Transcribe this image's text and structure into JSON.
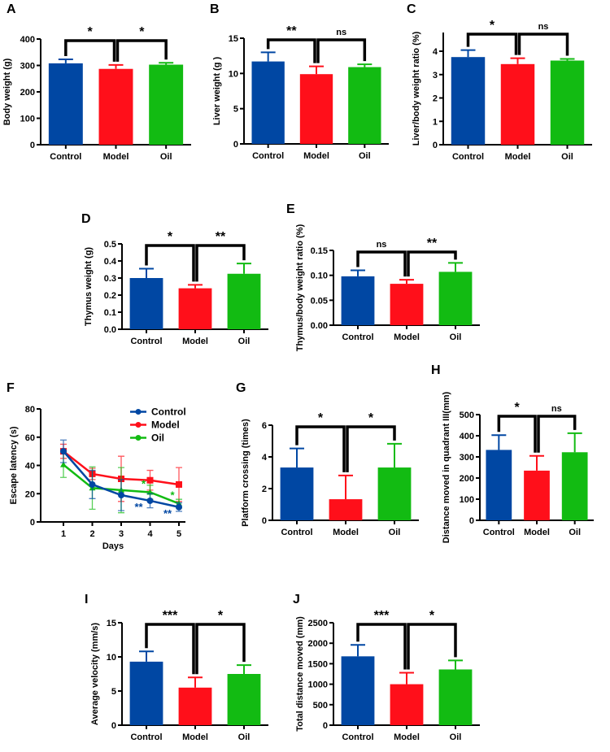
{
  "colors": {
    "Control": "#0047a3",
    "Model": "#ff0f1a",
    "Oil": "#12bb12"
  },
  "chart_data": [
    {
      "panel": "A",
      "type": "bar",
      "categories": [
        "Control",
        "Model",
        "Oil"
      ],
      "values": [
        308,
        287,
        303
      ],
      "errors": [
        15,
        15,
        7
      ],
      "ylabel": "Body weight (g)",
      "ylim": [
        0,
        400
      ],
      "yticks": [
        "0",
        "100",
        "200",
        "300",
        "400"
      ],
      "annotations": [
        {
          "pair": [
            0,
            1
          ],
          "label": "*"
        },
        {
          "pair": [
            1,
            2
          ],
          "label": "*"
        }
      ]
    },
    {
      "panel": "B",
      "type": "bar",
      "categories": [
        "Control",
        "Model",
        "Oil"
      ],
      "values": [
        11.7,
        9.9,
        10.9
      ],
      "errors": [
        1.3,
        1.1,
        0.4
      ],
      "ylabel": "Liver weight (g )",
      "ylim": [
        0,
        15
      ],
      "yticks": [
        "0",
        "5",
        "10",
        "15"
      ],
      "annotations": [
        {
          "pair": [
            0,
            1
          ],
          "label": "**"
        },
        {
          "pair": [
            1,
            2
          ],
          "label": "ns"
        }
      ]
    },
    {
      "panel": "C",
      "type": "bar",
      "categories": [
        "Control",
        "Model",
        "Oil"
      ],
      "values": [
        3.75,
        3.45,
        3.6
      ],
      "errors": [
        0.3,
        0.25,
        0.07
      ],
      "ylabel": "Liver/body weight ratio (%)",
      "ylim": [
        0,
        4.8
      ],
      "yticks": [
        "0",
        "1",
        "2",
        "3",
        "4"
      ],
      "annotations": [
        {
          "pair": [
            0,
            1
          ],
          "label": "*"
        },
        {
          "pair": [
            1,
            2
          ],
          "label": "ns"
        }
      ]
    },
    {
      "panel": "D",
      "type": "bar",
      "categories": [
        "Control",
        "Model",
        "Oil"
      ],
      "values": [
        0.3,
        0.24,
        0.325
      ],
      "errors": [
        0.055,
        0.02,
        0.06
      ],
      "ylabel": "Thymus weight (g)",
      "ylim": [
        0,
        0.5
      ],
      "yticks": [
        "0.0",
        "0.1",
        "0.2",
        "0.3",
        "0.4",
        "0.5"
      ],
      "annotations": [
        {
          "pair": [
            0,
            1
          ],
          "label": "*"
        },
        {
          "pair": [
            1,
            2
          ],
          "label": "**"
        }
      ]
    },
    {
      "panel": "E",
      "type": "bar",
      "categories": [
        "Control",
        "Model",
        "Oil"
      ],
      "values": [
        0.098,
        0.083,
        0.107
      ],
      "errors": [
        0.012,
        0.008,
        0.018
      ],
      "ylabel": "Thymus/body weight ratio (%)",
      "ylim": [
        0,
        0.15
      ],
      "yticks": [
        "0.00",
        "0.05",
        "0.10",
        "0.15"
      ],
      "annotations": [
        {
          "pair": [
            0,
            1
          ],
          "label": "ns"
        },
        {
          "pair": [
            1,
            2
          ],
          "label": "**"
        }
      ]
    },
    {
      "panel": "F",
      "type": "line",
      "x": [
        1,
        2,
        3,
        4,
        5
      ],
      "xticks": [
        "1",
        "2",
        "3",
        "4",
        "5"
      ],
      "xlabel": "Days",
      "ylabel": "Escape latency (s)",
      "ylim": [
        0,
        80
      ],
      "yticks": [
        "0",
        "20",
        "40",
        "60",
        "80"
      ],
      "legend": "top-right",
      "series": [
        {
          "name": "Control",
          "marker": "circle",
          "values": [
            50,
            26.5,
            19,
            15,
            10.5
          ],
          "errors": [
            8,
            10,
            11,
            5,
            3
          ]
        },
        {
          "name": "Model",
          "marker": "square",
          "values": [
            50,
            34,
            30.5,
            29.5,
            26.5
          ],
          "errors": [
            5,
            4,
            16,
            7,
            12
          ]
        },
        {
          "name": "Oil",
          "marker": "triangle",
          "values": [
            40.5,
            24,
            22.5,
            21,
            13
          ],
          "errors": [
            9,
            15,
            16,
            5,
            3
          ]
        }
      ],
      "annotations": [
        {
          "series": "Control",
          "x": 4,
          "label": "**"
        },
        {
          "series": "Control",
          "x": 5,
          "label": "**"
        },
        {
          "series": "Oil",
          "x": 4,
          "label": "*"
        },
        {
          "series": "Oil",
          "x": 5,
          "label": "*"
        }
      ]
    },
    {
      "panel": "G",
      "type": "bar",
      "categories": [
        "Control",
        "Model",
        "Oil"
      ],
      "values": [
        3.33,
        1.33,
        3.33
      ],
      "errors": [
        1.2,
        1.5,
        1.5
      ],
      "ylabel": "Platform crossing (times)",
      "ylim": [
        0,
        6
      ],
      "yticks": [
        "0",
        "2",
        "4",
        "6"
      ],
      "annotations": [
        {
          "pair": [
            0,
            1
          ],
          "label": "*"
        },
        {
          "pair": [
            1,
            2
          ],
          "label": "*"
        }
      ]
    },
    {
      "panel": "H",
      "type": "bar",
      "categories": [
        "Control",
        "Model",
        "Oil"
      ],
      "values": [
        333,
        235,
        322
      ],
      "errors": [
        70,
        70,
        90
      ],
      "ylabel": "Distance moved in quadrant III(mm)",
      "ylim": [
        0,
        500
      ],
      "yticks": [
        "0",
        "100",
        "200",
        "300",
        "400",
        "500"
      ],
      "annotations": [
        {
          "pair": [
            0,
            1
          ],
          "label": "*"
        },
        {
          "pair": [
            1,
            2
          ],
          "label": "ns"
        }
      ]
    },
    {
      "panel": "I",
      "type": "bar",
      "categories": [
        "Control",
        "Model",
        "Oil"
      ],
      "values": [
        9.3,
        5.5,
        7.5
      ],
      "errors": [
        1.5,
        1.5,
        1.3
      ],
      "ylabel": "Average velocity (mm/s)",
      "ylim": [
        0,
        15
      ],
      "yticks": [
        "0",
        "5",
        "10",
        "15"
      ],
      "annotations": [
        {
          "pair": [
            0,
            1
          ],
          "label": "***"
        },
        {
          "pair": [
            1,
            2
          ],
          "label": "*"
        }
      ]
    },
    {
      "panel": "J",
      "type": "bar",
      "categories": [
        "Control",
        "Model",
        "Oil"
      ],
      "values": [
        1680,
        1000,
        1360
      ],
      "errors": [
        280,
        280,
        220
      ],
      "ylabel": "Total distance moved (mm)",
      "ylim": [
        0,
        2500
      ],
      "yticks": [
        "0",
        "500",
        "1000",
        "1500",
        "2000",
        "2500"
      ],
      "annotations": [
        {
          "pair": [
            0,
            1
          ],
          "label": "***"
        },
        {
          "pair": [
            1,
            2
          ],
          "label": "*"
        }
      ]
    }
  ]
}
